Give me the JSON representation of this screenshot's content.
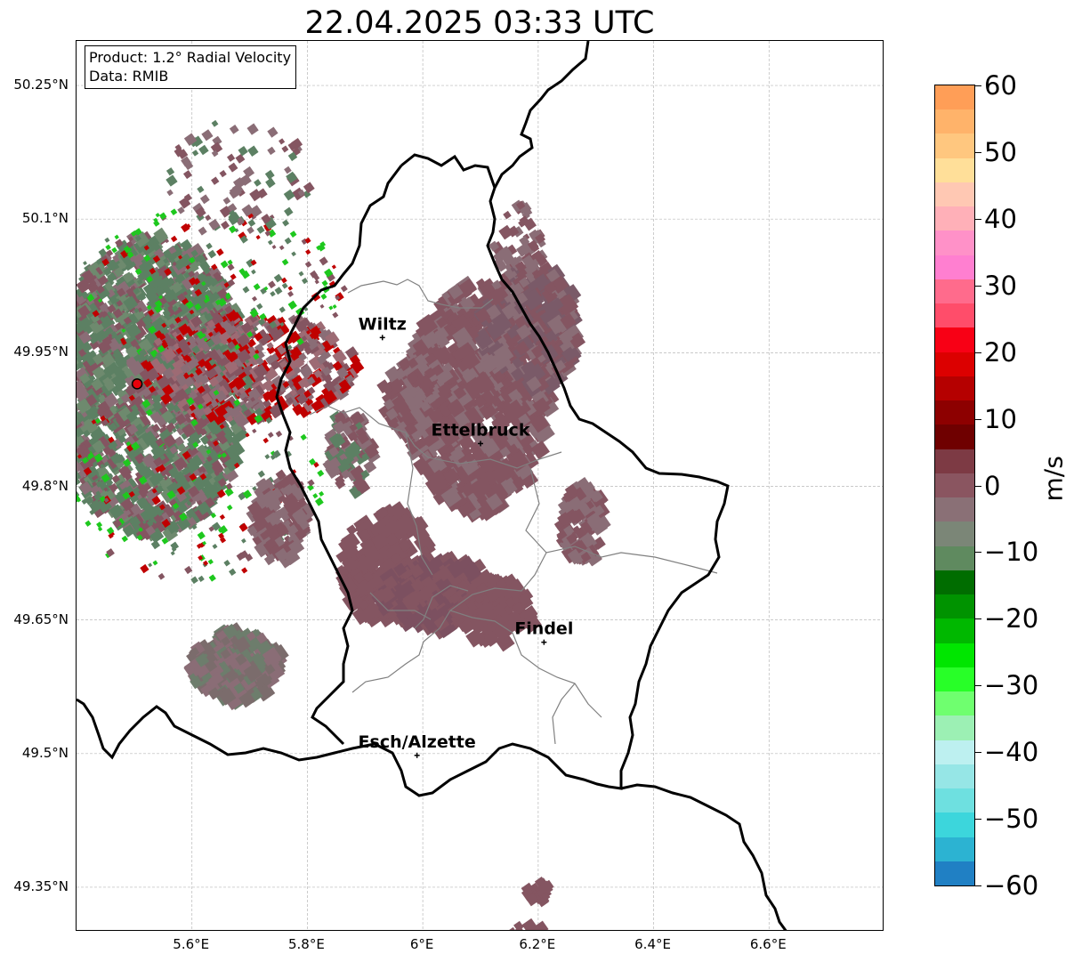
{
  "title": "22.04.2025 03:33 UTC",
  "info": {
    "product": "Product: 1.2° Radial Velocity",
    "data": "Data: RMIB"
  },
  "axes": {
    "lat_ticks": [
      "50.25°N",
      "50.1°N",
      "49.95°N",
      "49.8°N",
      "49.65°N",
      "49.5°N",
      "49.35°N"
    ],
    "lon_ticks": [
      "5.6°E",
      "5.8°E",
      "6°E",
      "6.2°E",
      "6.4°E",
      "6.6°E"
    ],
    "lat_values": [
      50.25,
      50.1,
      49.95,
      49.8,
      49.65,
      49.5,
      49.35
    ],
    "lon_values": [
      5.6,
      5.8,
      6.0,
      6.2,
      6.4,
      6.6
    ],
    "lon_range": [
      5.4,
      6.8
    ],
    "lat_range": [
      49.3,
      50.3
    ],
    "gridlines": true
  },
  "cities": [
    {
      "name": "Wiltz",
      "lon": 5.93,
      "lat": 49.967
    },
    {
      "name": "Ettelbruck",
      "lon": 6.1,
      "lat": 49.848
    },
    {
      "name": "Findel",
      "lon": 6.21,
      "lat": 49.625
    },
    {
      "name": "Esch/Alzette",
      "lon": 5.99,
      "lat": 49.498
    }
  ],
  "radar_site": {
    "lon": 5.505,
    "lat": 49.915,
    "color": "#e8000b"
  },
  "colorbar": {
    "unit": "m/s",
    "ticks": [
      "60",
      "50",
      "40",
      "30",
      "20",
      "10",
      "0",
      "−10",
      "−20",
      "−30",
      "−40",
      "−50",
      "−60"
    ],
    "min": -60,
    "max": 60,
    "colors": [
      "#ff9e57",
      "#ffb36a",
      "#ffc77f",
      "#ffdf99",
      "#ffc8b3",
      "#ffb0b8",
      "#ff91c8",
      "#ff7fd0",
      "#ff6b8c",
      "#ff4d6a",
      "#f80015",
      "#dc0000",
      "#b50000",
      "#8d0000",
      "#6f0000",
      "#7d3a44",
      "#8a5560",
      "#8a7076",
      "#7b8677",
      "#5f8a5f",
      "#006d00",
      "#009300",
      "#00b800",
      "#00e600",
      "#28ff28",
      "#6fff6f",
      "#9cf0b4",
      "#bdf0f0",
      "#96e6e6",
      "#6ee0e0",
      "#3cd6dc",
      "#2cb3d2",
      "#2080c4"
    ]
  },
  "echo_colors": {
    "main": "#845561",
    "gray": "#8a6d76",
    "green": "#5c8063",
    "red": "#c00000",
    "bright_green": "#1ec81e"
  }
}
